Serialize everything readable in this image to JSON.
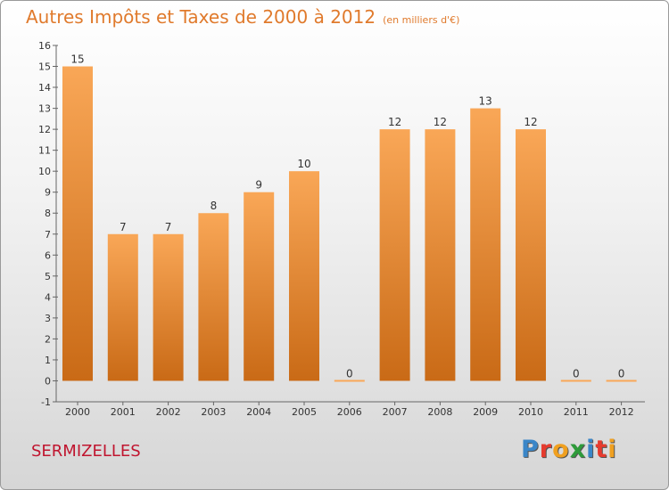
{
  "header": {
    "title": "Autres Impôts et Taxes de 2000 à 2012",
    "subtitle": "(en milliers d'€)"
  },
  "footer": {
    "commune": "SERMIZELLES",
    "logo": [
      "P",
      "r",
      "o",
      "x",
      "i",
      "t",
      "i"
    ]
  },
  "colors": {
    "bar_light": "#f9a757",
    "bar_dark": "#c96a16",
    "title": "#e07a2c",
    "commune": "#c0152f",
    "logo": [
      "#3a86c8",
      "#e63b2e",
      "#f0a020",
      "#2e9b3a",
      "#3a86c8",
      "#e63b2e",
      "#f0a020"
    ]
  },
  "chart_data": {
    "type": "bar",
    "categories": [
      "2000",
      "2001",
      "2002",
      "2003",
      "2004",
      "2005",
      "2006",
      "2007",
      "2008",
      "2009",
      "2010",
      "2011",
      "2012"
    ],
    "values": [
      15,
      7,
      7,
      8,
      9,
      10,
      0,
      12,
      12,
      13,
      12,
      0,
      0
    ],
    "data_labels": [
      "15",
      "7",
      "7",
      "8",
      "9",
      "10",
      "0",
      "12",
      "12",
      "13",
      "12",
      "0",
      "0"
    ],
    "y_ticks": [
      "-1",
      "0",
      "1",
      "2",
      "3",
      "4",
      "5",
      "6",
      "7",
      "8",
      "9",
      "10",
      "11",
      "12",
      "13",
      "14",
      "15",
      "16"
    ],
    "ylim": [
      -1,
      16
    ],
    "grid": false,
    "legend": "none"
  }
}
